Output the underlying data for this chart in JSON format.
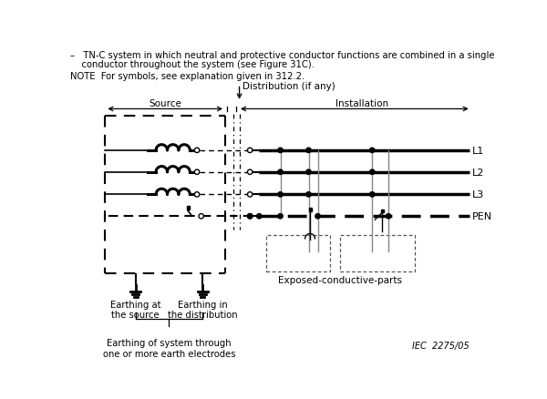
{
  "title_line1": "–   TN-C system in which neutral and protective conductor functions are combined in a single",
  "title_line2": "    conductor throughout the system (see Figure 31C).",
  "note_text": "NOTE  For symbols, see explanation given in 312.2.",
  "label_distribution": "Distribution (if any)",
  "label_source": "Source",
  "label_installation": "Installation",
  "label_L1": "L1",
  "label_L2": "L2",
  "label_L3": "L3",
  "label_PEN": "PEN",
  "label_exposed": "Exposed-conductive-parts",
  "label_earthing_source": "Earthing at\nthe source",
  "label_earthing_dist": "Earthing in\nthe distribution",
  "label_earthing_system": "Earthing of system through\none or more earth electrodes",
  "label_iec": "IEC  2275/05",
  "bg_color": "#ffffff",
  "line_color": "#000000"
}
